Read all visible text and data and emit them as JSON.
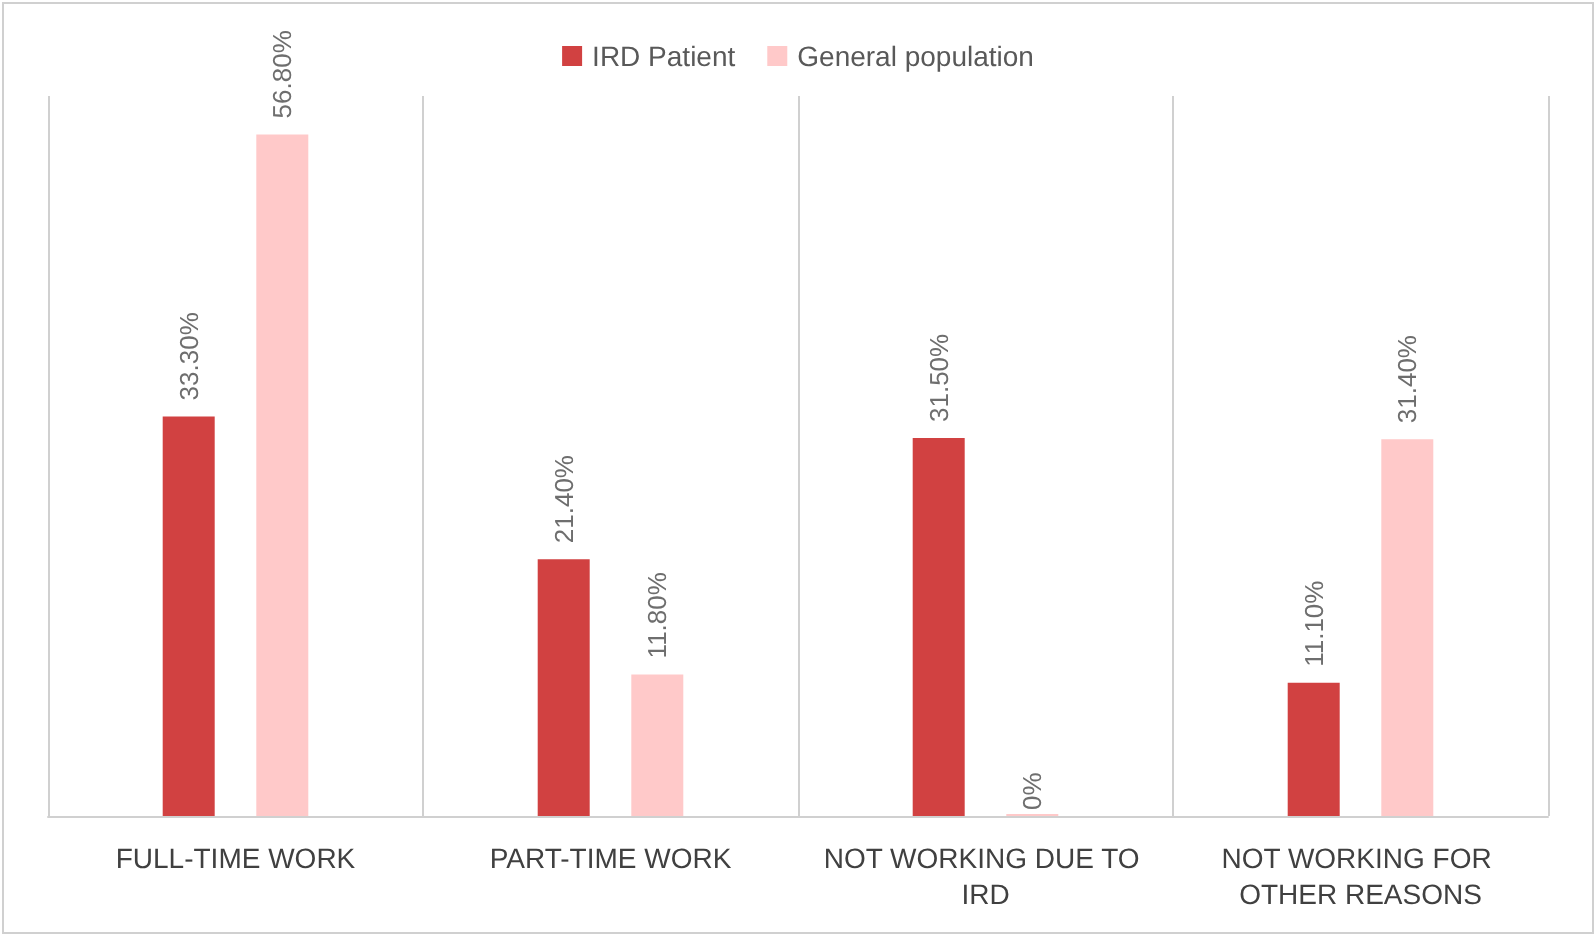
{
  "chart_data": {
    "type": "bar",
    "categories": [
      "FULL-TIME WORK",
      "PART-TIME WORK",
      "NOT WORKING DUE TO IRD",
      "NOT WORKING FOR OTHER REASONS"
    ],
    "series": [
      {
        "name": "IRD Patient",
        "color": "#d14141",
        "values": [
          33.3,
          21.4,
          31.5,
          11.1
        ],
        "value_labels": [
          "33.30%",
          "21.40%",
          "31.50%",
          "11.10%"
        ]
      },
      {
        "name": "General population",
        "color": "#ffc9c9",
        "values": [
          56.8,
          11.8,
          0,
          31.4
        ],
        "value_labels": [
          "56.80%",
          "11.80%",
          "0%",
          "31.40%"
        ]
      }
    ],
    "grid": "x",
    "legend": "top"
  }
}
